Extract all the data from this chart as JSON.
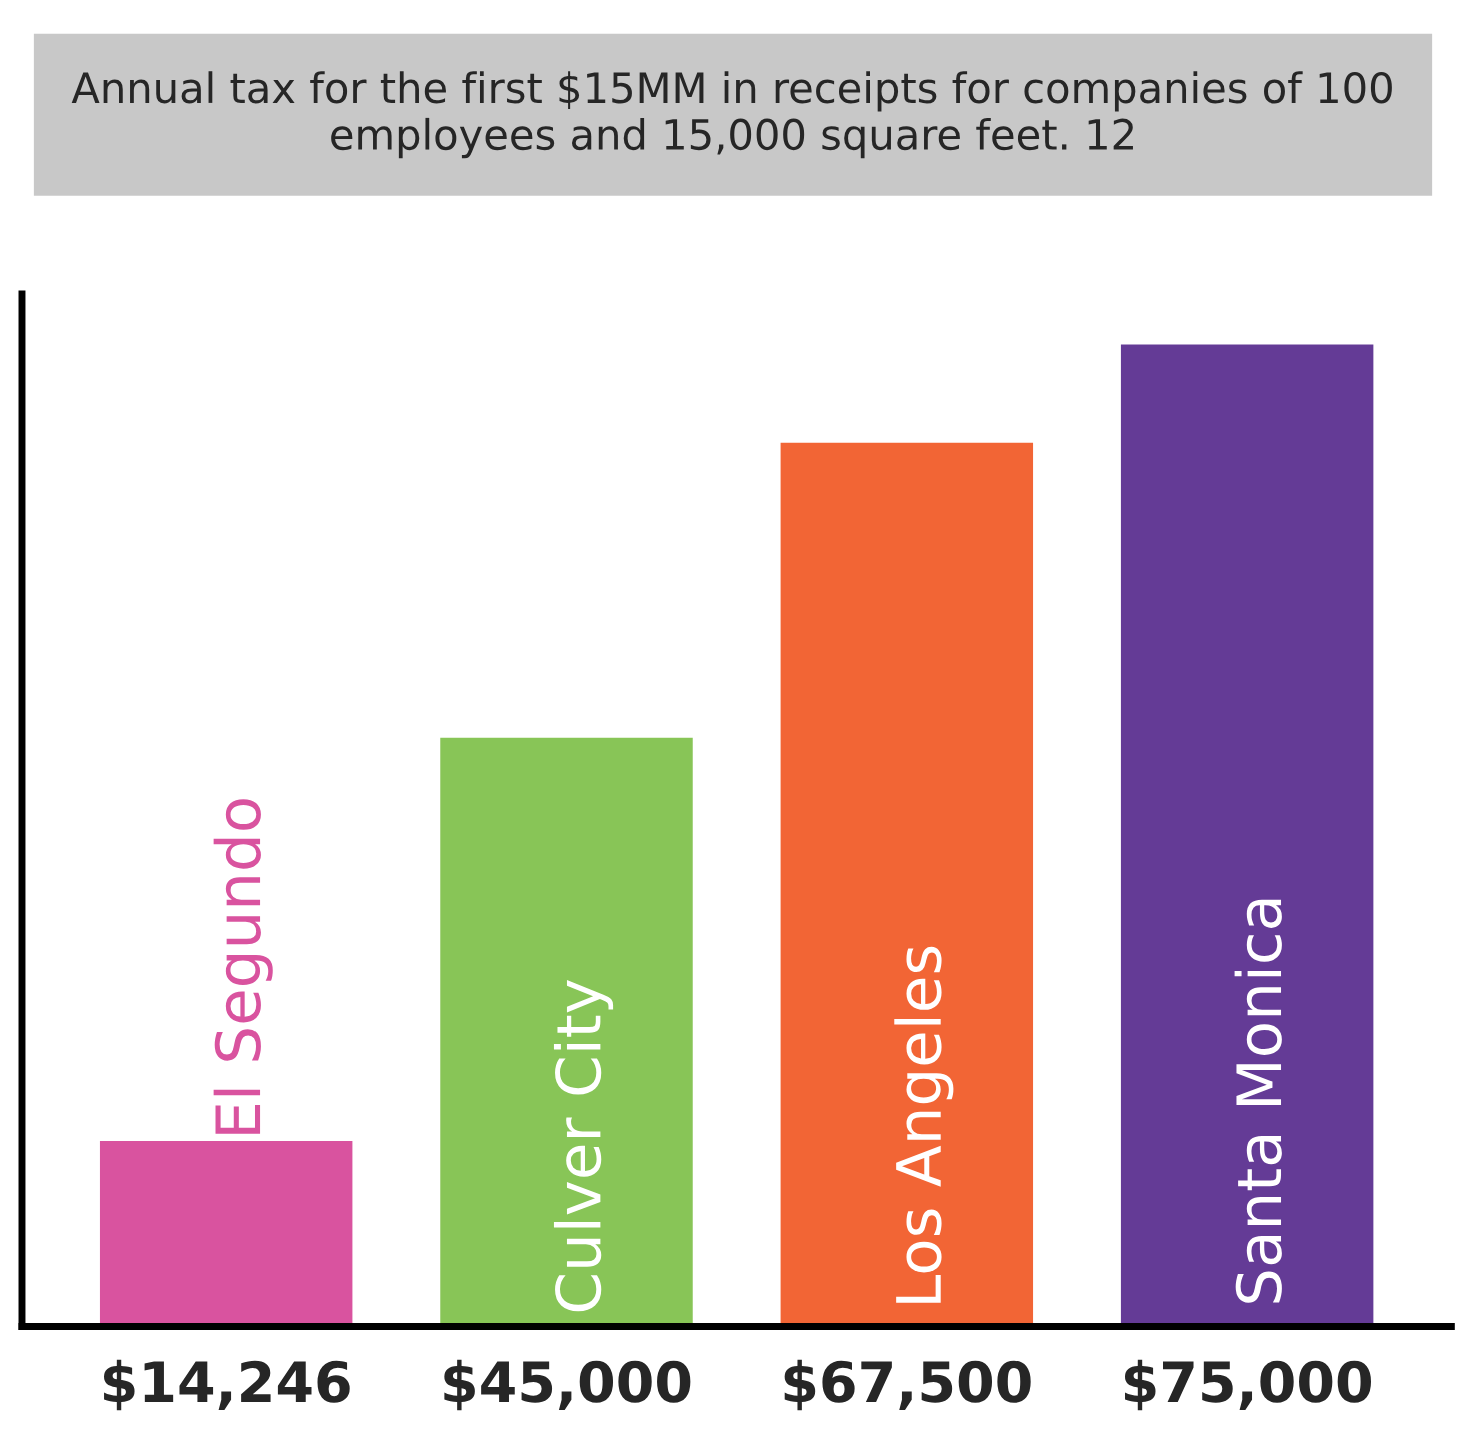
{
  "chart_data": {
    "type": "bar",
    "title": "Annual tax for the first $15MM in receipts for companies of 100 employees and 15,000 square feet. 12",
    "categories": [
      "El Segundo",
      "Culver City",
      "Los Angeles",
      "Santa Monica"
    ],
    "values": [
      14246,
      45000,
      67500,
      75000
    ],
    "colors": [
      "#d9539f",
      "#88c557",
      "#f26535",
      "#643b96"
    ],
    "value_labels": [
      "$14,246",
      "$45,000",
      "$67,500",
      "$75,000"
    ],
    "tick_labels": false,
    "grid": false,
    "legend": false
  }
}
